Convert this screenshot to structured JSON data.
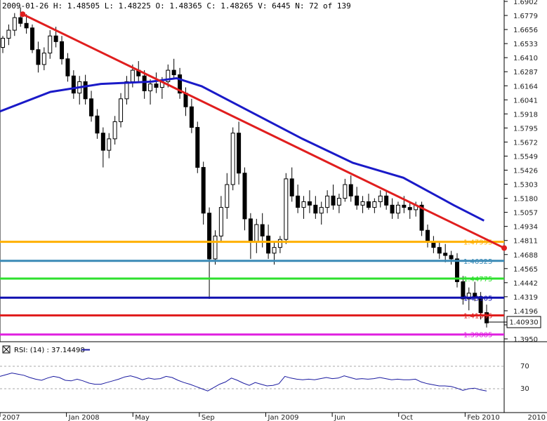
{
  "header": {
    "info": "2009-01-26 H: 1.48505 L: 1.48225 O: 1.48365 C: 1.48265 V: 6445 N: 72 of 139"
  },
  "rsi": {
    "label": "RSI: (14) : 37.14498",
    "levels": [
      "70",
      "30"
    ],
    "level_values": [
      70,
      30
    ],
    "line_color": "#1a1aa0"
  },
  "current_price_label": "1.40930",
  "chart_data": {
    "type": "candlestick",
    "title": "",
    "xlabel": "",
    "ylabel": "",
    "x_tick_labels": [
      "2007",
      "Jan 2008",
      "May",
      "Sep",
      "Jan 2009",
      "Jun",
      "Oct",
      "Feb 2010",
      "2010"
    ],
    "y_tick_labels": [
      "1.6902",
      "1.6779",
      "1.6656",
      "1.6533",
      "1.6410",
      "1.6287",
      "1.6164",
      "1.6041",
      "1.5918",
      "1.5795",
      "1.5672",
      "1.5549",
      "1.5426",
      "1.5303",
      "1.5180",
      "1.5057",
      "1.4934",
      "1.4811",
      "1.4688",
      "1.4565",
      "1.4442",
      "1.4319",
      "1.4196",
      "1.4073",
      "1.3950"
    ],
    "y_range": [
      1.395,
      1.6902
    ],
    "grid": false,
    "legend": "none",
    "ohlc_approx_weekly": [
      [
        1.65,
        1.66,
        1.645,
        1.658
      ],
      [
        1.658,
        1.67,
        1.652,
        1.665
      ],
      [
        1.665,
        1.68,
        1.66,
        1.676
      ],
      [
        1.676,
        1.685,
        1.668,
        1.671
      ],
      [
        1.671,
        1.679,
        1.662,
        1.667
      ],
      [
        1.667,
        1.67,
        1.645,
        1.648
      ],
      [
        1.648,
        1.655,
        1.628,
        1.635
      ],
      [
        1.635,
        1.65,
        1.63,
        1.645
      ],
      [
        1.645,
        1.665,
        1.64,
        1.66
      ],
      [
        1.66,
        1.668,
        1.65,
        1.655
      ],
      [
        1.655,
        1.66,
        1.635,
        1.64
      ],
      [
        1.64,
        1.645,
        1.62,
        1.625
      ],
      [
        1.625,
        1.63,
        1.605,
        1.61
      ],
      [
        1.61,
        1.625,
        1.6,
        1.62
      ],
      [
        1.62,
        1.626,
        1.6,
        1.605
      ],
      [
        1.605,
        1.612,
        1.585,
        1.59
      ],
      [
        1.59,
        1.596,
        1.57,
        1.575
      ],
      [
        1.575,
        1.58,
        1.545,
        1.56
      ],
      [
        1.56,
        1.575,
        1.553,
        1.57
      ],
      [
        1.57,
        1.59,
        1.565,
        1.585
      ],
      [
        1.585,
        1.61,
        1.58,
        1.605
      ],
      [
        1.605,
        1.625,
        1.6,
        1.62
      ],
      [
        1.62,
        1.635,
        1.615,
        1.63
      ],
      [
        1.63,
        1.638,
        1.62,
        1.625
      ],
      [
        1.625,
        1.63,
        1.605,
        1.612
      ],
      [
        1.612,
        1.622,
        1.6,
        1.618
      ],
      [
        1.618,
        1.628,
        1.61,
        1.615
      ],
      [
        1.615,
        1.624,
        1.605,
        1.62
      ],
      [
        1.62,
        1.635,
        1.615,
        1.63
      ],
      [
        1.63,
        1.64,
        1.622,
        1.626
      ],
      [
        1.626,
        1.632,
        1.605,
        1.61
      ],
      [
        1.61,
        1.615,
        1.59,
        1.598
      ],
      [
        1.598,
        1.605,
        1.575,
        1.58
      ],
      [
        1.58,
        1.585,
        1.54,
        1.545
      ],
      [
        1.545,
        1.55,
        1.495,
        1.505
      ],
      [
        1.505,
        1.51,
        1.43,
        1.465
      ],
      [
        1.465,
        1.49,
        1.46,
        1.485
      ],
      [
        1.485,
        1.52,
        1.48,
        1.51
      ],
      [
        1.51,
        1.54,
        1.5,
        1.53
      ],
      [
        1.53,
        1.58,
        1.525,
        1.575
      ],
      [
        1.575,
        1.585,
        1.53,
        1.54
      ],
      [
        1.54,
        1.545,
        1.49,
        1.5
      ],
      [
        1.5,
        1.505,
        1.465,
        1.48
      ],
      [
        1.48,
        1.5,
        1.47,
        1.495
      ],
      [
        1.495,
        1.505,
        1.475,
        1.485
      ],
      [
        1.485,
        1.495,
        1.465,
        1.47
      ],
      [
        1.47,
        1.48,
        1.46,
        1.475
      ],
      [
        1.475,
        1.485,
        1.47,
        1.482
      ],
      [
        1.482,
        1.54,
        1.478,
        1.535
      ],
      [
        1.535,
        1.545,
        1.515,
        1.52
      ],
      [
        1.52,
        1.53,
        1.505,
        1.51
      ],
      [
        1.51,
        1.52,
        1.5,
        1.515
      ],
      [
        1.515,
        1.525,
        1.505,
        1.512
      ],
      [
        1.512,
        1.52,
        1.5,
        1.505
      ],
      [
        1.505,
        1.515,
        1.495,
        1.51
      ],
      [
        1.51,
        1.525,
        1.505,
        1.52
      ],
      [
        1.52,
        1.53,
        1.508,
        1.512
      ],
      [
        1.512,
        1.522,
        1.505,
        1.518
      ],
      [
        1.518,
        1.535,
        1.515,
        1.53
      ],
      [
        1.53,
        1.538,
        1.515,
        1.52
      ],
      [
        1.52,
        1.528,
        1.508,
        1.512
      ],
      [
        1.512,
        1.52,
        1.505,
        1.515
      ],
      [
        1.515,
        1.522,
        1.508,
        1.51
      ],
      [
        1.51,
        1.518,
        1.505,
        1.515
      ],
      [
        1.515,
        1.525,
        1.51,
        1.52
      ],
      [
        1.52,
        1.525,
        1.508,
        1.512
      ],
      [
        1.512,
        1.518,
        1.5,
        1.505
      ],
      [
        1.505,
        1.515,
        1.5,
        1.512
      ],
      [
        1.512,
        1.52,
        1.505,
        1.51
      ],
      [
        1.51,
        1.515,
        1.5,
        1.508
      ],
      [
        1.508,
        1.515,
        1.502,
        1.512
      ],
      [
        1.512,
        1.515,
        1.485,
        1.49
      ],
      [
        1.49,
        1.495,
        1.475,
        1.48
      ],
      [
        1.48,
        1.485,
        1.47,
        1.475
      ],
      [
        1.475,
        1.48,
        1.465,
        1.47
      ],
      [
        1.47,
        1.478,
        1.462,
        1.468
      ],
      [
        1.468,
        1.472,
        1.46,
        1.465
      ],
      [
        1.465,
        1.47,
        1.44,
        1.445
      ],
      [
        1.445,
        1.45,
        1.425,
        1.43
      ],
      [
        1.43,
        1.44,
        1.42,
        1.435
      ],
      [
        1.435,
        1.445,
        1.428,
        1.432
      ],
      [
        1.432,
        1.436,
        1.412,
        1.418
      ],
      [
        1.418,
        1.425,
        1.405,
        1.409
      ]
    ],
    "moving_average_path": [
      [
        0,
        1.594
      ],
      [
        0.1,
        1.611
      ],
      [
        0.2,
        1.618
      ],
      [
        0.3,
        1.62
      ],
      [
        0.35,
        1.623
      ],
      [
        0.4,
        1.616
      ],
      [
        0.5,
        1.593
      ],
      [
        0.6,
        1.57
      ],
      [
        0.7,
        1.549
      ],
      [
        0.8,
        1.536
      ],
      [
        0.9,
        1.512
      ],
      [
        0.96,
        1.4985
      ]
    ],
    "moving_average_color": "#1a1ac8",
    "trendline": {
      "color": "#e01e1e",
      "start": [
        0.045,
        1.679
      ],
      "end": [
        1.0,
        1.4745
      ]
    },
    "horizontal_levels": [
      {
        "value": 1.47995,
        "label": "1.47995",
        "color": "#ffb000"
      },
      {
        "value": 1.46325,
        "label": "1.46325",
        "color": "#3a8ab6"
      },
      {
        "value": 1.44775,
        "label": "1.44775",
        "color": "#2ee02e"
      },
      {
        "value": 1.43105,
        "label": "1.43105",
        "color": "#1010b0"
      },
      {
        "value": 1.41555,
        "label": "1.41555",
        "color": "#e01e1e"
      },
      {
        "value": 1.39885,
        "label": "1.39885",
        "color": "#e020e0"
      }
    ],
    "rsi_values": [
      52,
      55,
      58,
      56,
      54,
      50,
      47,
      45,
      49,
      52,
      50,
      45,
      44,
      47,
      44,
      40,
      38,
      38,
      41,
      44,
      47,
      51,
      53,
      50,
      46,
      49,
      47,
      48,
      52,
      50,
      45,
      41,
      38,
      34,
      30,
      26,
      32,
      38,
      42,
      49,
      45,
      40,
      36,
      41,
      38,
      35,
      36,
      39,
      52,
      49,
      47,
      46,
      47,
      46,
      48,
      50,
      48,
      49,
      53,
      50,
      47,
      48,
      47,
      48,
      50,
      48,
      46,
      47,
      46,
      46,
      47,
      42,
      39,
      37,
      35,
      35,
      34,
      31,
      27,
      30,
      31,
      28,
      26
    ]
  }
}
